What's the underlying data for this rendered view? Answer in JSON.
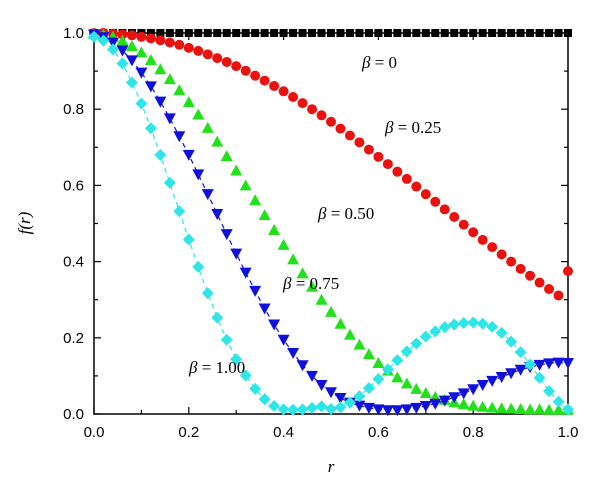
{
  "chart_data": {
    "type": "scatter",
    "xlabel": "r",
    "ylabel": "f(r)",
    "xlim": [
      0.0,
      1.0
    ],
    "ylim": [
      0.0,
      1.0
    ],
    "x_ticks": [
      "0.0",
      "0.2",
      "0.4",
      "0.6",
      "0.8",
      "1.0"
    ],
    "y_ticks": [
      "0.0",
      "0.2",
      "0.4",
      "0.6",
      "0.8",
      "1.0"
    ],
    "grid": false,
    "legend": "none",
    "series": [
      {
        "beta": 0,
        "marker": "square",
        "color": "#000000",
        "dashed_line": false,
        "x": [
          0.0,
          0.02,
          0.04,
          0.06,
          0.08,
          0.1,
          0.12,
          0.14,
          0.16,
          0.18,
          0.2,
          0.22,
          0.24,
          0.26,
          0.28,
          0.3,
          0.32,
          0.34,
          0.36,
          0.38,
          0.4,
          0.42,
          0.44,
          0.46,
          0.48,
          0.5,
          0.52,
          0.54,
          0.56,
          0.58,
          0.6,
          0.62,
          0.64,
          0.66,
          0.68,
          0.7,
          0.72,
          0.74,
          0.76,
          0.78,
          0.8,
          0.82,
          0.84,
          0.86,
          0.88,
          0.9,
          0.92,
          0.94,
          0.96,
          0.98,
          1.0
        ],
        "y": [
          1.0,
          1.0,
          1.0,
          1.0,
          1.0,
          1.0,
          1.0,
          1.0,
          1.0,
          1.0,
          1.0,
          1.0,
          1.0,
          1.0,
          1.0,
          1.0,
          1.0,
          1.0,
          1.0,
          1.0,
          1.0,
          1.0,
          1.0,
          1.0,
          1.0,
          1.0,
          1.0,
          1.0,
          1.0,
          1.0,
          1.0,
          1.0,
          1.0,
          1.0,
          1.0,
          1.0,
          1.0,
          1.0,
          1.0,
          1.0,
          1.0,
          1.0,
          1.0,
          1.0,
          1.0,
          1.0,
          1.0,
          1.0,
          1.0,
          1.0,
          1.0
        ]
      },
      {
        "beta": 0.25,
        "marker": "circle",
        "color": "#e8130f",
        "dashed_line": false,
        "x": [
          0.0,
          0.02,
          0.04,
          0.06,
          0.08,
          0.1,
          0.12,
          0.14,
          0.16,
          0.18,
          0.2,
          0.22,
          0.24,
          0.26,
          0.28,
          0.3,
          0.32,
          0.34,
          0.36,
          0.38,
          0.4,
          0.42,
          0.44,
          0.46,
          0.48,
          0.5,
          0.52,
          0.54,
          0.56,
          0.58,
          0.6,
          0.62,
          0.64,
          0.66,
          0.68,
          0.7,
          0.72,
          0.74,
          0.76,
          0.78,
          0.8,
          0.82,
          0.84,
          0.86,
          0.88,
          0.9,
          0.92,
          0.94,
          0.96,
          0.98,
          1.0
        ],
        "y": [
          1.0,
          1.0,
          0.998,
          0.996,
          0.994,
          0.99,
          0.986,
          0.981,
          0.975,
          0.969,
          0.961,
          0.953,
          0.944,
          0.934,
          0.924,
          0.913,
          0.901,
          0.888,
          0.875,
          0.861,
          0.847,
          0.832,
          0.816,
          0.8,
          0.784,
          0.767,
          0.749,
          0.731,
          0.713,
          0.694,
          0.675,
          0.656,
          0.636,
          0.617,
          0.597,
          0.577,
          0.557,
          0.537,
          0.517,
          0.497,
          0.477,
          0.457,
          0.438,
          0.419,
          0.4,
          0.381,
          0.363,
          0.345,
          0.328,
          0.311,
          0.375
        ]
      },
      {
        "beta": 0.5,
        "marker": "triangle-up",
        "color": "#22e01a",
        "dashed_line": false,
        "x": [
          0.0,
          0.02,
          0.04,
          0.06,
          0.08,
          0.1,
          0.12,
          0.14,
          0.16,
          0.18,
          0.2,
          0.22,
          0.24,
          0.26,
          0.28,
          0.3,
          0.32,
          0.34,
          0.36,
          0.38,
          0.4,
          0.42,
          0.44,
          0.46,
          0.48,
          0.5,
          0.52,
          0.54,
          0.56,
          0.58,
          0.6,
          0.62,
          0.64,
          0.66,
          0.68,
          0.7,
          0.72,
          0.74,
          0.76,
          0.78,
          0.8,
          0.82,
          0.84,
          0.86,
          0.88,
          0.9,
          0.92,
          0.94,
          0.96,
          0.98,
          1.0
        ],
        "y": [
          0.998,
          0.996,
          0.99,
          0.98,
          0.966,
          0.949,
          0.929,
          0.905,
          0.879,
          0.85,
          0.819,
          0.786,
          0.751,
          0.715,
          0.677,
          0.639,
          0.6,
          0.561,
          0.522,
          0.483,
          0.444,
          0.406,
          0.369,
          0.334,
          0.3,
          0.268,
          0.237,
          0.208,
          0.182,
          0.157,
          0.134,
          0.114,
          0.096,
          0.08,
          0.066,
          0.055,
          0.045,
          0.037,
          0.031,
          0.026,
          0.022,
          0.019,
          0.017,
          0.015,
          0.014,
          0.013,
          0.012,
          0.012,
          0.011,
          0.011,
          0.011
        ]
      },
      {
        "beta": 0.75,
        "marker": "triangle-down",
        "color": "#1010dd",
        "dashed_line": true,
        "x": [
          0.0,
          0.02,
          0.04,
          0.06,
          0.08,
          0.1,
          0.12,
          0.14,
          0.16,
          0.18,
          0.2,
          0.22,
          0.24,
          0.26,
          0.28,
          0.3,
          0.32,
          0.34,
          0.36,
          0.38,
          0.4,
          0.42,
          0.44,
          0.46,
          0.48,
          0.5,
          0.52,
          0.54,
          0.56,
          0.58,
          0.6,
          0.62,
          0.64,
          0.66,
          0.68,
          0.7,
          0.72,
          0.74,
          0.76,
          0.78,
          0.8,
          0.82,
          0.84,
          0.86,
          0.88,
          0.9,
          0.92,
          0.94,
          0.96,
          0.98,
          1.0
        ],
        "y": [
          0.996,
          0.989,
          0.975,
          0.954,
          0.928,
          0.896,
          0.86,
          0.82,
          0.776,
          0.729,
          0.68,
          0.629,
          0.577,
          0.525,
          0.472,
          0.421,
          0.371,
          0.323,
          0.277,
          0.235,
          0.195,
          0.16,
          0.128,
          0.1,
          0.076,
          0.057,
          0.042,
          0.03,
          0.022,
          0.016,
          0.012,
          0.01,
          0.01,
          0.012,
          0.016,
          0.021,
          0.027,
          0.035,
          0.044,
          0.054,
          0.065,
          0.076,
          0.087,
          0.097,
          0.107,
          0.116,
          0.123,
          0.129,
          0.133,
          0.135,
          0.134
        ]
      },
      {
        "beta": 1.0,
        "marker": "diamond",
        "color": "#2ee6e6",
        "dashed_line": true,
        "x": [
          0.0,
          0.02,
          0.04,
          0.06,
          0.08,
          0.1,
          0.12,
          0.14,
          0.16,
          0.18,
          0.2,
          0.22,
          0.24,
          0.26,
          0.28,
          0.3,
          0.32,
          0.34,
          0.36,
          0.38,
          0.4,
          0.42,
          0.44,
          0.46,
          0.48,
          0.5,
          0.52,
          0.54,
          0.56,
          0.58,
          0.6,
          0.62,
          0.64,
          0.66,
          0.68,
          0.7,
          0.72,
          0.74,
          0.76,
          0.78,
          0.8,
          0.82,
          0.84,
          0.86,
          0.88,
          0.9,
          0.92,
          0.94,
          0.96,
          0.98,
          1.0
        ],
        "y": [
          0.99,
          0.98,
          0.957,
          0.92,
          0.87,
          0.815,
          0.75,
          0.68,
          0.607,
          0.532,
          0.458,
          0.386,
          0.317,
          0.253,
          0.195,
          0.144,
          0.101,
          0.066,
          0.039,
          0.021,
          0.012,
          0.011,
          0.012,
          0.016,
          0.02,
          0.013,
          0.018,
          0.03,
          0.047,
          0.068,
          0.092,
          0.117,
          0.141,
          0.164,
          0.185,
          0.203,
          0.217,
          0.228,
          0.235,
          0.239,
          0.24,
          0.237,
          0.229,
          0.213,
          0.19,
          0.162,
          0.13,
          0.095,
          0.06,
          0.032,
          0.012
        ]
      }
    ],
    "annotations": [
      {
        "beta_symbol": "β",
        "text": " = 0",
        "series_index": 0
      },
      {
        "beta_symbol": "β",
        "text": " = 0.25",
        "series_index": 1
      },
      {
        "beta_symbol": "β",
        "text": " = 0.50",
        "series_index": 2
      },
      {
        "beta_symbol": "β",
        "text": " = 0.75",
        "series_index": 3
      },
      {
        "beta_symbol": "β",
        "text": " = 1.00",
        "series_index": 4
      }
    ]
  }
}
